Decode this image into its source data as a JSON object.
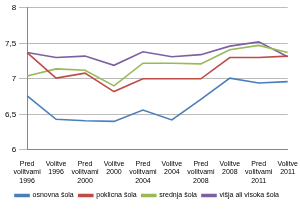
{
  "chart_data": {
    "type": "line",
    "categories": [
      "Pred volitvami 1996",
      "Volitve 1996",
      "Pred volitvami 2000",
      "Volitve 2000",
      "Pred volitvami 2004",
      "Volitve 2004",
      "Pred volitvami 2008",
      "Volitve 2008",
      "Pred volitvami 2011",
      "Volitve 2011"
    ],
    "series": [
      {
        "name": "osnovna šola",
        "color": "#4a7ebb",
        "values": [
          6.76,
          6.43,
          6.41,
          6.4,
          6.56,
          6.42,
          6.71,
          7.01,
          6.94,
          6.96
        ]
      },
      {
        "name": "poklicna šola",
        "color": "#be4b48",
        "values": [
          7.37,
          7.01,
          7.08,
          6.82,
          7.0,
          7.0,
          7.0,
          7.3,
          7.3,
          7.32
        ]
      },
      {
        "name": "srednja šola",
        "color": "#98b954",
        "values": [
          7.04,
          7.14,
          7.12,
          6.9,
          7.22,
          7.22,
          7.21,
          7.41,
          7.47,
          7.37
        ]
      },
      {
        "name": "višja ali visoka šola",
        "color": "#7d60a0",
        "values": [
          7.37,
          7.3,
          7.32,
          7.19,
          7.38,
          7.31,
          7.34,
          7.46,
          7.52,
          7.31
        ]
      }
    ],
    "ylim": [
      6,
      8
    ],
    "yticks": [
      6,
      {
        "value": 6.5,
        "label": "6,5"
      },
      7,
      {
        "value": 7.5,
        "label": "7,5"
      },
      8
    ],
    "grid": true,
    "legend": "bottom"
  }
}
